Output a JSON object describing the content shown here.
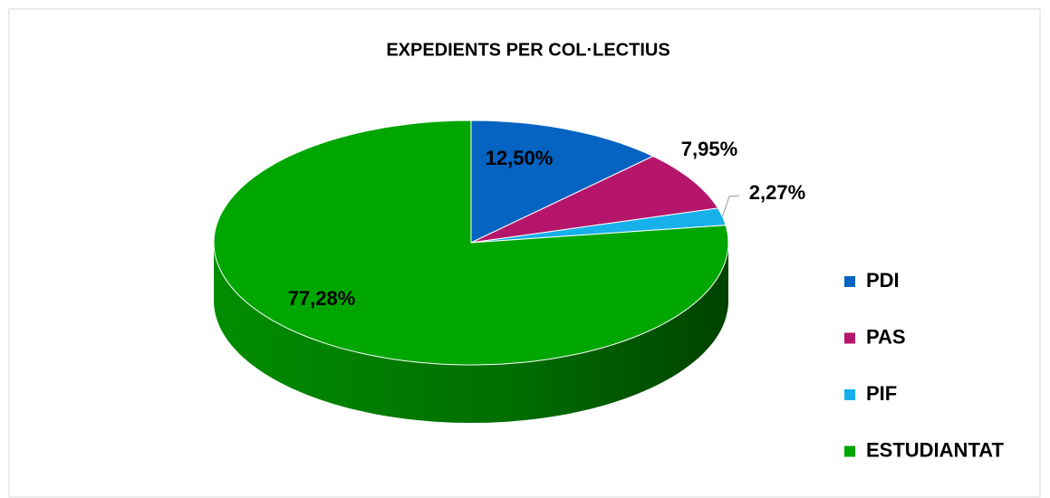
{
  "chart_data": {
    "type": "pie",
    "title": "EXPEDIENTS PER COL·LECTIUS",
    "categories": [
      "PDI",
      "PAS",
      "PIF",
      "ESTUDIANTAT"
    ],
    "values": [
      12.5,
      7.95,
      2.27,
      77.28
    ],
    "value_labels": [
      "12,50%",
      "7,95%",
      "2,27%",
      "77,28%"
    ],
    "colors": [
      "#0563c1",
      "#b5166b",
      "#17b0ea",
      "#00a600"
    ],
    "legend": "right",
    "three_d": true
  }
}
